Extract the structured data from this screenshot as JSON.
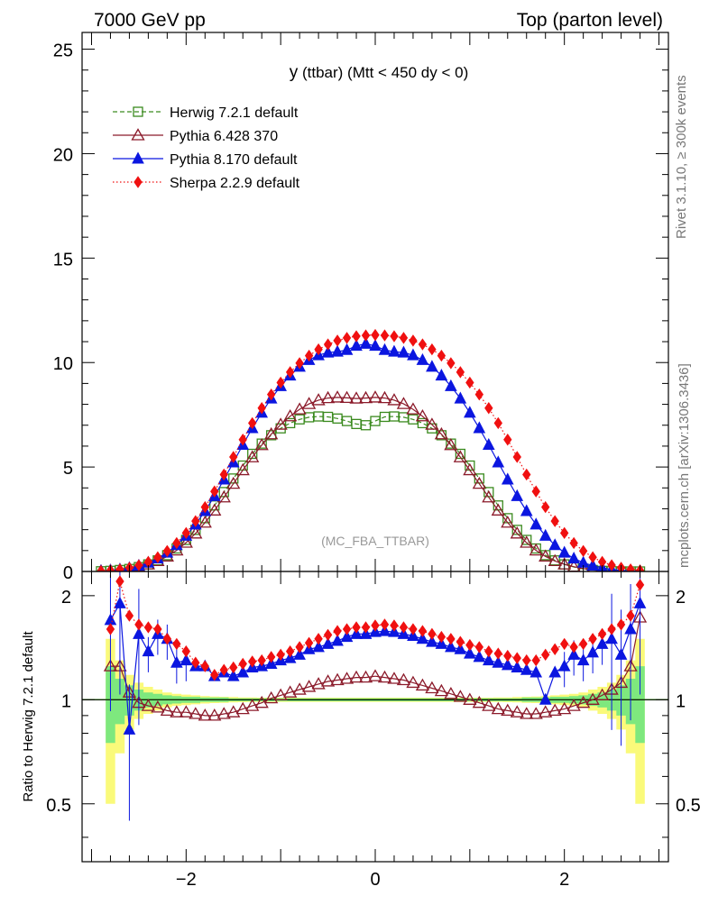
{
  "header": {
    "left": "7000 GeV pp",
    "right": "Top (parton level)"
  },
  "plot_title": {
    "var": "y",
    "rest": " (ttbar) (Mtt < 450 dy < 0)"
  },
  "analysis_tag": "(MC_FBA_TTBAR)",
  "side_labels": {
    "rivet": "Rivet 3.1.10, ≥ 300k events",
    "mcplots": "mcplots.cern.ch [arXiv:1306.3436]"
  },
  "colors": {
    "herwig": "#3a8a1e",
    "pythia6": "#8b1a2a",
    "pythia8": "#0b16e0",
    "sherpa": "#f01010",
    "band_inner": "#7ee87e",
    "band_outer": "#fafa7a"
  },
  "chart_data": [
    {
      "type": "line",
      "panel": "main",
      "title": "y (ttbar) (Mtt < 450 dy < 0)",
      "xlabel": "",
      "ylabel": "",
      "xlim": [
        -3.1,
        3.1
      ],
      "ylim": [
        0,
        25.8
      ],
      "x_ticks": [
        -2,
        0,
        2
      ],
      "y_ticks": [
        0,
        5,
        10,
        15,
        20,
        25
      ],
      "x_tick_labels": [
        "−2",
        "0",
        "2"
      ],
      "y_tick_labels": [
        "0",
        "5",
        "10",
        "15",
        "20",
        "25"
      ],
      "legend": [
        {
          "key": "herwig",
          "label": "Herwig 7.2.1 default",
          "marker": "open-square",
          "line": "dashed"
        },
        {
          "key": "pythia6",
          "label": "Pythia 6.428 370",
          "marker": "open-triangle",
          "line": "solid"
        },
        {
          "key": "pythia8",
          "label": "Pythia 8.170 default",
          "marker": "filled-triangle",
          "line": "solid"
        },
        {
          "key": "sherpa",
          "label": "Sherpa 2.2.9 default",
          "marker": "filled-diamond",
          "line": "dotted"
        }
      ],
      "x": [
        -2.9,
        -2.8,
        -2.7,
        -2.6,
        -2.5,
        -2.4,
        -2.3,
        -2.2,
        -2.1,
        -2.0,
        -1.9,
        -1.8,
        -1.7,
        -1.6,
        -1.5,
        -1.4,
        -1.3,
        -1.2,
        -1.1,
        -1.0,
        -0.9,
        -0.8,
        -0.7,
        -0.6,
        -0.5,
        -0.4,
        -0.3,
        -0.2,
        -0.1,
        0.0,
        0.1,
        0.2,
        0.3,
        0.4,
        0.5,
        0.6,
        0.7,
        0.8,
        0.9,
        1.0,
        1.1,
        1.2,
        1.3,
        1.4,
        1.5,
        1.6,
        1.7,
        1.8,
        1.9,
        2.0,
        2.1,
        2.2,
        2.3,
        2.4,
        2.5,
        2.6,
        2.7,
        2.8
      ],
      "series": [
        {
          "name": "Herwig 7.2.1 default",
          "key": "herwig",
          "values": [
            0.01,
            0.03,
            0.07,
            0.12,
            0.21,
            0.34,
            0.53,
            0.78,
            1.1,
            1.51,
            1.99,
            2.55,
            3.16,
            3.8,
            4.45,
            5.07,
            5.63,
            6.12,
            6.52,
            6.85,
            7.1,
            7.28,
            7.38,
            7.42,
            7.4,
            7.32,
            7.2,
            7.06,
            7.0,
            7.2,
            7.4,
            7.42,
            7.38,
            7.28,
            7.1,
            6.85,
            6.52,
            6.12,
            5.63,
            5.07,
            4.45,
            3.8,
            3.16,
            2.55,
            1.99,
            1.51,
            1.1,
            0.78,
            0.53,
            0.34,
            0.21,
            0.12,
            0.07,
            0.03,
            0.01,
            0.0,
            0.0,
            0.0
          ]
        },
        {
          "name": "Pythia 6.428 370",
          "key": "pythia6",
          "values": [
            0.02,
            0.04,
            0.08,
            0.14,
            0.23,
            0.34,
            0.5,
            0.72,
            1.01,
            1.38,
            1.82,
            2.34,
            2.92,
            3.55,
            4.2,
            4.85,
            5.47,
            6.05,
            6.57,
            7.03,
            7.43,
            7.76,
            8.02,
            8.2,
            8.3,
            8.33,
            8.31,
            8.28,
            8.3,
            8.33,
            8.3,
            8.2,
            8.02,
            7.76,
            7.43,
            7.03,
            6.57,
            6.05,
            5.47,
            4.85,
            4.2,
            3.55,
            2.92,
            2.34,
            1.82,
            1.38,
            1.01,
            0.72,
            0.5,
            0.34,
            0.23,
            0.14,
            0.08,
            0.04,
            0.02,
            0.0,
            0.0,
            0.0
          ]
        },
        {
          "name": "Pythia 8.170 default",
          "key": "pythia8",
          "values": [
            0.02,
            0.05,
            0.1,
            0.17,
            0.28,
            0.42,
            0.62,
            0.9,
            1.26,
            1.71,
            2.25,
            2.89,
            3.61,
            4.4,
            5.22,
            6.06,
            6.86,
            7.6,
            8.28,
            8.87,
            9.38,
            9.8,
            10.12,
            10.35,
            10.48,
            10.52,
            10.6,
            10.8,
            10.9,
            10.8,
            10.6,
            10.52,
            10.48,
            10.35,
            10.12,
            9.8,
            9.38,
            8.87,
            8.28,
            7.6,
            6.86,
            6.06,
            5.22,
            4.4,
            3.61,
            2.89,
            2.25,
            1.71,
            1.26,
            0.9,
            0.62,
            0.42,
            0.28,
            0.17,
            0.1,
            0.05,
            0.02,
            0.0
          ]
        },
        {
          "name": "Sherpa 2.2.9 default",
          "key": "sherpa",
          "values": [
            0.02,
            0.05,
            0.1,
            0.18,
            0.3,
            0.46,
            0.68,
            0.98,
            1.36,
            1.84,
            2.41,
            3.08,
            3.83,
            4.64,
            5.48,
            6.31,
            7.1,
            7.82,
            8.47,
            9.04,
            9.54,
            9.97,
            10.33,
            10.63,
            10.87,
            11.05,
            11.18,
            11.26,
            11.3,
            11.32,
            11.3,
            11.26,
            11.18,
            11.05,
            10.87,
            10.63,
            10.33,
            9.97,
            9.54,
            9.04,
            8.47,
            7.82,
            7.1,
            6.31,
            5.48,
            4.64,
            3.83,
            3.08,
            2.41,
            1.84,
            1.36,
            0.98,
            0.68,
            0.46,
            0.3,
            0.18,
            0.1,
            0.05
          ]
        }
      ]
    },
    {
      "type": "line",
      "panel": "ratio",
      "ylabel": "Ratio to Herwig 7.2.1 default",
      "xlim": [
        -3.1,
        3.1
      ],
      "ylim": [
        0.34,
        2.35
      ],
      "y_ticks": [
        0.5,
        1,
        2
      ],
      "y_tick_labels": [
        "0.5",
        "1",
        "2"
      ],
      "x_ticks": [
        -2,
        0,
        2
      ],
      "x_tick_labels": [
        "−2",
        "0",
        "2"
      ],
      "x": [
        -2.8,
        -2.7,
        -2.6,
        -2.5,
        -2.4,
        -2.3,
        -2.2,
        -2.1,
        -2.0,
        -1.9,
        -1.8,
        -1.7,
        -1.6,
        -1.5,
        -1.4,
        -1.3,
        -1.2,
        -1.1,
        -1.0,
        -0.9,
        -0.8,
        -0.7,
        -0.6,
        -0.5,
        -0.4,
        -0.3,
        -0.2,
        -0.1,
        0.0,
        0.1,
        0.2,
        0.3,
        0.4,
        0.5,
        0.6,
        0.7,
        0.8,
        0.9,
        1.0,
        1.1,
        1.2,
        1.3,
        1.4,
        1.5,
        1.6,
        1.7,
        1.8,
        1.9,
        2.0,
        2.1,
        2.2,
        2.3,
        2.4,
        2.5,
        2.6,
        2.7,
        2.8
      ],
      "band_inner": [
        0.75,
        0.85,
        0.9,
        0.93,
        0.95,
        0.96,
        0.97,
        0.975,
        0.98,
        0.98,
        0.985,
        0.985,
        0.985,
        0.99,
        0.99,
        0.99,
        0.99,
        0.99,
        0.99,
        0.99,
        0.99,
        0.99,
        0.99,
        0.99,
        0.99,
        0.99,
        0.99,
        0.99,
        0.99,
        0.99,
        0.99,
        0.99,
        0.99,
        0.99,
        0.99,
        0.99,
        0.99,
        0.99,
        0.99,
        0.99,
        0.99,
        0.99,
        0.99,
        0.99,
        0.985,
        0.985,
        0.985,
        0.98,
        0.98,
        0.975,
        0.97,
        0.96,
        0.95,
        0.93,
        0.9,
        0.85,
        0.75
      ],
      "band_outer": [
        0.5,
        0.7,
        0.82,
        0.88,
        0.91,
        0.93,
        0.95,
        0.96,
        0.965,
        0.97,
        0.975,
        0.978,
        0.98,
        0.982,
        0.984,
        0.985,
        0.986,
        0.986,
        0.986,
        0.986,
        0.986,
        0.986,
        0.986,
        0.986,
        0.986,
        0.986,
        0.986,
        0.986,
        0.986,
        0.986,
        0.986,
        0.986,
        0.986,
        0.986,
        0.986,
        0.986,
        0.986,
        0.986,
        0.986,
        0.986,
        0.986,
        0.985,
        0.984,
        0.982,
        0.98,
        0.978,
        0.975,
        0.97,
        0.965,
        0.96,
        0.95,
        0.93,
        0.91,
        0.88,
        0.82,
        0.7,
        0.5
      ],
      "series": [
        {
          "name": "Pythia 6.428 370",
          "key": "pythia6",
          "values": [
            1.25,
            1.25,
            1.05,
            0.98,
            0.96,
            0.95,
            0.93,
            0.92,
            0.92,
            0.91,
            0.9,
            0.9,
            0.91,
            0.92,
            0.94,
            0.96,
            0.98,
            1.01,
            1.03,
            1.05,
            1.07,
            1.09,
            1.11,
            1.13,
            1.14,
            1.15,
            1.16,
            1.16,
            1.17,
            1.16,
            1.15,
            1.14,
            1.12,
            1.1,
            1.08,
            1.06,
            1.04,
            1.02,
            1.0,
            0.98,
            0.96,
            0.94,
            0.93,
            0.92,
            0.91,
            0.91,
            0.92,
            0.93,
            0.94,
            0.96,
            0.98,
            1.0,
            1.03,
            1.07,
            1.12,
            1.25,
            1.73
          ]
        },
        {
          "name": "Pythia 8.170 default",
          "key": "pythia8",
          "values": [
            1.7,
            1.9,
            0.82,
            1.55,
            1.38,
            1.55,
            1.5,
            1.28,
            1.3,
            1.25,
            1.25,
            1.17,
            1.2,
            1.17,
            1.2,
            1.24,
            1.25,
            1.27,
            1.3,
            1.32,
            1.35,
            1.4,
            1.42,
            1.45,
            1.48,
            1.52,
            1.55,
            1.55,
            1.57,
            1.58,
            1.57,
            1.55,
            1.53,
            1.5,
            1.47,
            1.45,
            1.42,
            1.4,
            1.36,
            1.33,
            1.3,
            1.28,
            1.26,
            1.24,
            1.22,
            1.2,
            1.0,
            1.2,
            1.25,
            1.35,
            1.3,
            1.37,
            1.45,
            1.5,
            1.35,
            1.6,
            1.9
          ]
        },
        {
          "name": "Sherpa 2.2.9 default",
          "key": "sherpa",
          "values": [
            1.6,
            2.2,
            1.75,
            1.65,
            1.62,
            1.6,
            1.5,
            1.45,
            1.38,
            1.28,
            1.25,
            1.18,
            1.22,
            1.24,
            1.27,
            1.29,
            1.3,
            1.33,
            1.35,
            1.38,
            1.42,
            1.46,
            1.5,
            1.54,
            1.58,
            1.6,
            1.62,
            1.62,
            1.64,
            1.65,
            1.64,
            1.62,
            1.6,
            1.58,
            1.55,
            1.52,
            1.5,
            1.47,
            1.44,
            1.42,
            1.38,
            1.36,
            1.34,
            1.32,
            1.3,
            1.3,
            1.35,
            1.4,
            1.45,
            1.42,
            1.45,
            1.5,
            1.55,
            1.6,
            1.65,
            1.75,
            2.15
          ]
        }
      ]
    }
  ]
}
